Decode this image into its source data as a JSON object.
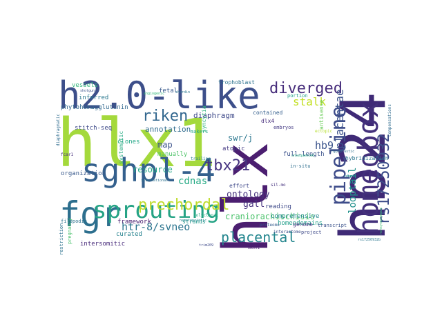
{
  "words": [
    {
      "text": "hb24",
      "color": "#3f2a76"
    },
    {
      "text": "hlx1",
      "color": "#a4d93c"
    },
    {
      "text": "hlx",
      "color": "#4b1e70"
    },
    {
      "text": "h2.0-like",
      "color": "#3d4f8a"
    },
    {
      "text": "sghpl-4",
      "color": "#34608d"
    },
    {
      "text": "homeobox",
      "color": "#43307b"
    },
    {
      "text": "fgr",
      "color": "#2d6f8e"
    },
    {
      "text": "sprouting",
      "color": "#25a385"
    },
    {
      "text": "pipeline",
      "color": "#3e4c8a"
    },
    {
      "text": "diverged",
      "color": "#472d7b"
    },
    {
      "text": "rs17250932",
      "color": "#3d4d8a"
    },
    {
      "text": "prechordal",
      "color": "#bfdc2c"
    },
    {
      "text": "tbx21",
      "color": "#463480"
    },
    {
      "text": "riken",
      "color": "#31668e"
    },
    {
      "text": "placental",
      "color": "#24868e"
    },
    {
      "text": "stalk",
      "color": "#c2df23"
    },
    {
      "text": "htr-8/svneo",
      "color": "#2b748e"
    },
    {
      "text": "placentae",
      "color": "#3b528b"
    },
    {
      "text": "cdnas",
      "color": "#23a983"
    },
    {
      "text": "hb9",
      "color": "#3a538b"
    },
    {
      "text": "looptail",
      "color": "#21918c"
    },
    {
      "text": "ontology",
      "color": "#46327e"
    },
    {
      "text": "craniorachischisis",
      "color": "#4cc26c"
    },
    {
      "text": "swr/j",
      "color": "#2a768e"
    },
    {
      "text": "resource",
      "color": "#22a785"
    },
    {
      "text": "gall",
      "color": "#46317e"
    },
    {
      "text": "diaphragm",
      "color": "#3e4989"
    },
    {
      "text": "annotation",
      "color": "#2f6b8e"
    },
    {
      "text": "map",
      "color": "#3b528b"
    },
    {
      "text": "vessels",
      "color": "#32b67a"
    },
    {
      "text": "fetal",
      "color": "#38598c"
    },
    {
      "text": "trophoblast",
      "color": "#2c728e"
    },
    {
      "text": "inferred",
      "color": "#2a788e"
    },
    {
      "text": "phytohemagglutinin",
      "color": "#31688e"
    },
    {
      "text": "stitch-seq",
      "color": "#3e4a89"
    },
    {
      "text": "clones",
      "color": "#21a685"
    },
    {
      "text": "manually",
      "color": "#50c46a"
    },
    {
      "text": "curated",
      "color": "#26828e"
    },
    {
      "text": "framework",
      "color": "#481f70"
    },
    {
      "text": "intersomitic",
      "color": "#472a7a"
    },
    {
      "text": "organization",
      "color": "#38598c"
    },
    {
      "text": "filopodia",
      "color": "#2c718e"
    },
    {
      "text": "systematic",
      "color": "#25ab82"
    },
    {
      "text": "full-length",
      "color": "#3b528b"
    },
    {
      "text": "atopic",
      "color": "#443983"
    },
    {
      "text": "reading",
      "color": "#3e4989"
    },
    {
      "text": "comprehensive",
      "color": "#23888e"
    },
    {
      "text": "homeodomains",
      "color": "#1f9e89"
    },
    {
      "text": "genome",
      "color": "#453581"
    },
    {
      "text": "effort",
      "color": "#3f4889"
    },
    {
      "text": "dlx4",
      "color": "#472e7c"
    },
    {
      "text": "contained",
      "color": "#355f8d"
    },
    {
      "text": "portion",
      "color": "#1fa088"
    },
    {
      "text": "embryos",
      "color": "#443a83"
    },
    {
      "text": "hybridization",
      "color": "#2b758e"
    },
    {
      "text": "antisense",
      "color": "#6ccd5a"
    },
    {
      "text": "in-situ",
      "color": "#2e6e8e"
    },
    {
      "text": "strands",
      "color": "#1f968b"
    },
    {
      "text": "polyclonal",
      "color": "#24aa83"
    },
    {
      "text": "hematopoietic",
      "color": "#24868e"
    },
    {
      "text": "interactome",
      "color": "#3d4e8a"
    },
    {
      "text": "proteome",
      "color": "#365c8d"
    },
    {
      "text": "project",
      "color": "#3e4a89"
    },
    {
      "text": "transcript",
      "color": "#3b528b"
    },
    {
      "text": "trailing",
      "color": "#27808e"
    },
    {
      "text": "international",
      "color": "#2c728e"
    },
    {
      "text": "makers",
      "color": "#21a585"
    },
    {
      "text": "syncytia",
      "color": "#2db27d"
    },
    {
      "text": "restriction",
      "color": "#2c718e"
    },
    {
      "text": "pregnancy",
      "color": "#4ac16d"
    },
    {
      "text": "diaphragmatic",
      "color": "#2f6c8e"
    },
    {
      "text": "fcar1",
      "color": "#472f7d"
    },
    {
      "text": "shotgun",
      "color": "#3b528b"
    },
    {
      "text": "angiogenic",
      "color": "#37b878"
    },
    {
      "text": "chordin",
      "color": "#2a778e"
    },
    {
      "text": "sil-mo",
      "color": "#46337f"
    },
    {
      "text": "trim209",
      "color": "#3e4a89"
    },
    {
      "text": "tm6sf1",
      "color": "#481b6d"
    },
    {
      "text": "unsequenced",
      "color": "#23a983"
    },
    {
      "text": "ectopic",
      "color": "#b5de2b"
    },
    {
      "text": "hypoplastic",
      "color": "#2e6f8e"
    },
    {
      "text": "nonsynonymous",
      "color": "#3fbc73"
    },
    {
      "text": "compensations",
      "color": "#2f6b8e"
    },
    {
      "text": "cdkn1c",
      "color": "#24878e"
    },
    {
      "text": "rs17250932b",
      "color": "#2a768e"
    }
  ]
}
